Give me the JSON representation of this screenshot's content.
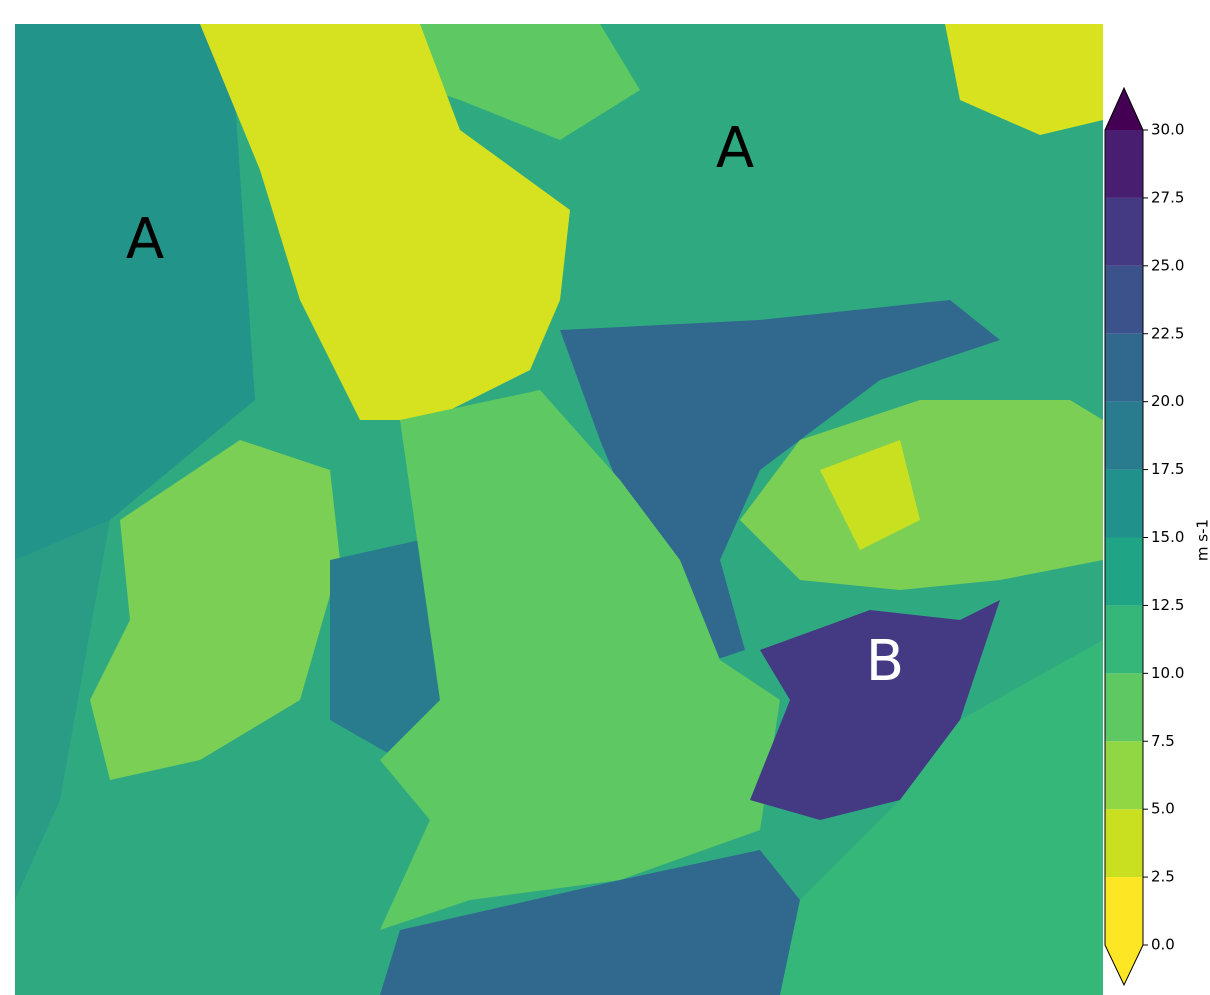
{
  "map": {
    "annotations": [
      {
        "text": "A"
      },
      {
        "text": "A"
      },
      {
        "text": "B"
      }
    ]
  },
  "colorbar": {
    "label": "m s-1",
    "lim": [
      0,
      30
    ],
    "ticks": [
      {
        "value": 0,
        "label": "0.0"
      },
      {
        "value": 2.5,
        "label": "2.5"
      },
      {
        "value": 5,
        "label": "5.0"
      },
      {
        "value": 7.5,
        "label": "7.5"
      },
      {
        "value": 10,
        "label": "10.0"
      },
      {
        "value": 12.5,
        "label": "12.5"
      },
      {
        "value": 15,
        "label": "15.0"
      },
      {
        "value": 17.5,
        "label": "17.5"
      },
      {
        "value": 20,
        "label": "20.0"
      },
      {
        "value": 22.5,
        "label": "22.5"
      },
      {
        "value": 25,
        "label": "25.0"
      },
      {
        "value": 27.5,
        "label": "27.5"
      },
      {
        "value": 30,
        "label": "30.0"
      }
    ],
    "colors": [
      "#fde725",
      "#c8e020",
      "#90d743",
      "#5ec962",
      "#35b779",
      "#20a486",
      "#21918c",
      "#287c8e",
      "#31688e",
      "#3b528b",
      "#443983",
      "#481f70"
    ],
    "extend_colors": [
      "#fde725",
      "#440154"
    ]
  }
}
